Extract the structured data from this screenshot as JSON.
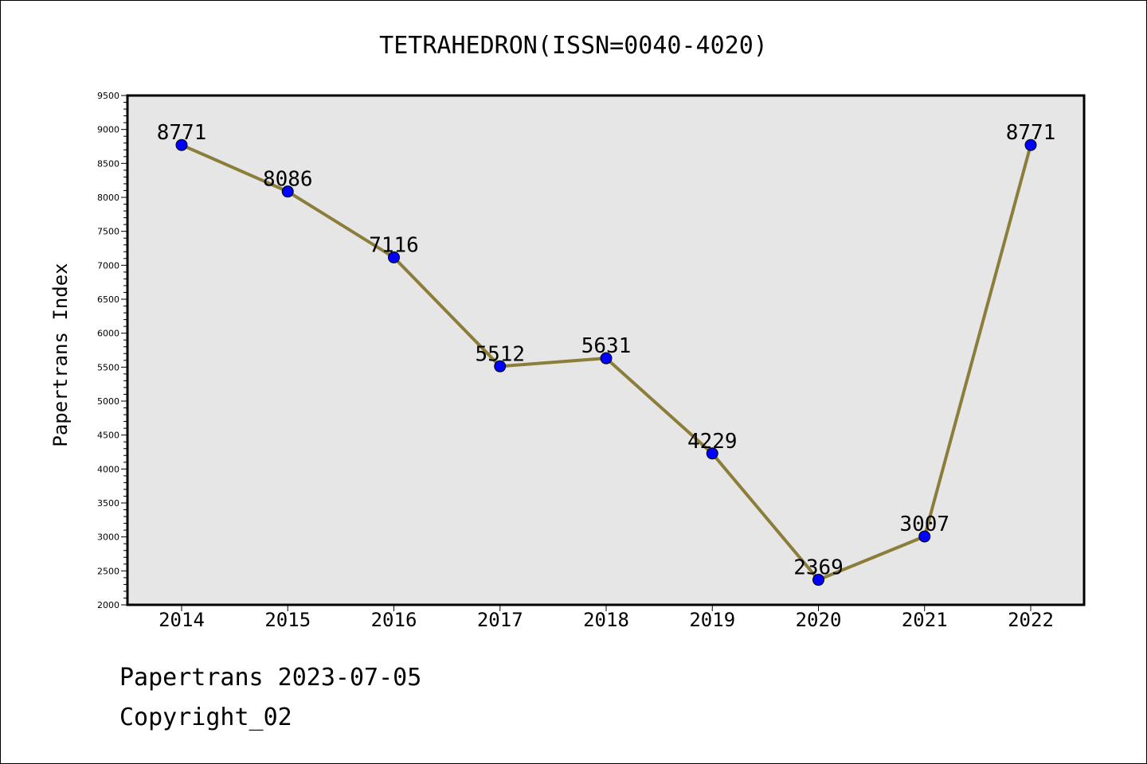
{
  "chart_data": {
    "type": "line",
    "title": "TETRAHEDRON(ISSN=0040-4020)",
    "xlabel": "",
    "ylabel": "Papertrans Index",
    "categories": [
      "2014",
      "2015",
      "2016",
      "2017",
      "2018",
      "2019",
      "2020",
      "2021",
      "2022"
    ],
    "series": [
      {
        "values": [
          8771,
          8086,
          7116,
          5512,
          5631,
          4229,
          2369,
          3007,
          8771
        ]
      }
    ],
    "ylim": [
      2000,
      9500
    ],
    "yticks": [
      2000,
      2500,
      3000,
      3500,
      4000,
      4500,
      5000,
      5500,
      6000,
      6500,
      7000,
      7500,
      8000,
      8500,
      9000,
      9500
    ],
    "grid": false,
    "legend": "none",
    "colors": {
      "line": "#8b7d3a",
      "marker": "#0000ff",
      "plot_background": "#e6e6e6"
    }
  },
  "footer": {
    "line1": "Papertrans 2023-07-05",
    "line2": "Copyright_02"
  }
}
